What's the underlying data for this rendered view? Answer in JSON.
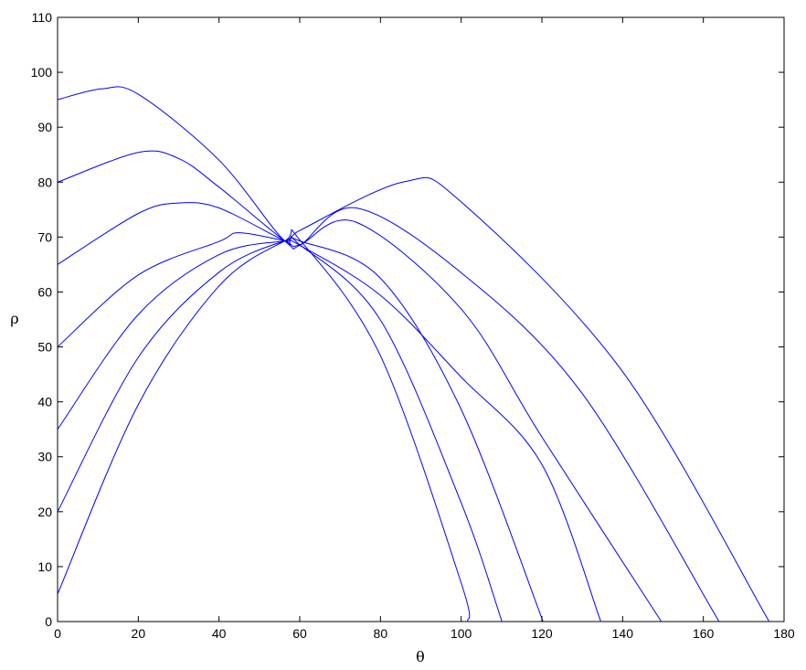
{
  "chart_data": {
    "type": "line",
    "title": "",
    "xlabel": "θ",
    "ylabel": "ρ",
    "xlim": [
      0,
      180
    ],
    "ylim": [
      0,
      110
    ],
    "xticks": [
      0,
      20,
      40,
      60,
      80,
      100,
      120,
      140,
      160,
      180
    ],
    "yticks": [
      0,
      10,
      20,
      30,
      40,
      50,
      60,
      70,
      80,
      90,
      100,
      110
    ],
    "grid": false,
    "legend": "none",
    "line_color": "#0000ff",
    "intersection_point": {
      "theta": 56.3,
      "rho": 69.3
    },
    "series": [
      {
        "points": [
          [
            0,
            5
          ],
          [
            20,
            39.5
          ],
          [
            40,
            61.1
          ],
          [
            56.3,
            69.3
          ],
          [
            60,
            69.5
          ],
          [
            80,
            48.4
          ],
          [
            100,
            7.0
          ],
          [
            101.6,
            0
          ]
        ]
      },
      {
        "points": [
          [
            0,
            20
          ],
          [
            20,
            48.1
          ],
          [
            40,
            63.6
          ],
          [
            56.3,
            69.3
          ],
          [
            60,
            68.6
          ],
          [
            80,
            54.9
          ],
          [
            100,
            21.6
          ],
          [
            110.1,
            0
          ]
        ]
      },
      {
        "points": [
          [
            0,
            35
          ],
          [
            20,
            55.9
          ],
          [
            40,
            66.8
          ],
          [
            56.3,
            69.3
          ],
          [
            60,
            69.3
          ],
          [
            80,
            62.5
          ],
          [
            100,
            38.6
          ],
          [
            120.3,
            0
          ]
        ]
      },
      {
        "points": [
          [
            0,
            50
          ],
          [
            20,
            63.1
          ],
          [
            40,
            69.2
          ],
          [
            45,
            70.8
          ],
          [
            56.3,
            69.3
          ],
          [
            60,
            68.5
          ],
          [
            80,
            59.4
          ],
          [
            100,
            44.5
          ],
          [
            120,
            28.6
          ],
          [
            134.6,
            0
          ]
        ]
      },
      {
        "points": [
          [
            0,
            65
          ],
          [
            20,
            74.3
          ],
          [
            30,
            76.2
          ],
          [
            40,
            75.3
          ],
          [
            56.3,
            69.3
          ],
          [
            60,
            68.6
          ],
          [
            74,
            72.7
          ],
          [
            100,
            56.9
          ],
          [
            120,
            33.6
          ],
          [
            149.6,
            0
          ]
        ]
      },
      {
        "points": [
          [
            0,
            80
          ],
          [
            20,
            85.4
          ],
          [
            30,
            84.3
          ],
          [
            40,
            79.1
          ],
          [
            56.3,
            69.3
          ],
          [
            60,
            68.5
          ],
          [
            74,
            75.3
          ],
          [
            100,
            63.5
          ],
          [
            130,
            41.5
          ],
          [
            163.9,
            0
          ]
        ]
      },
      {
        "points": [
          [
            0,
            95
          ],
          [
            11,
            97.0
          ],
          [
            20,
            96.0
          ],
          [
            40,
            84.0
          ],
          [
            56.3,
            69.3
          ],
          [
            60,
            71.2
          ],
          [
            86,
            80.1
          ],
          [
            100,
            76.4
          ],
          [
            140,
            45.5
          ],
          [
            176.3,
            0
          ]
        ]
      }
    ]
  }
}
